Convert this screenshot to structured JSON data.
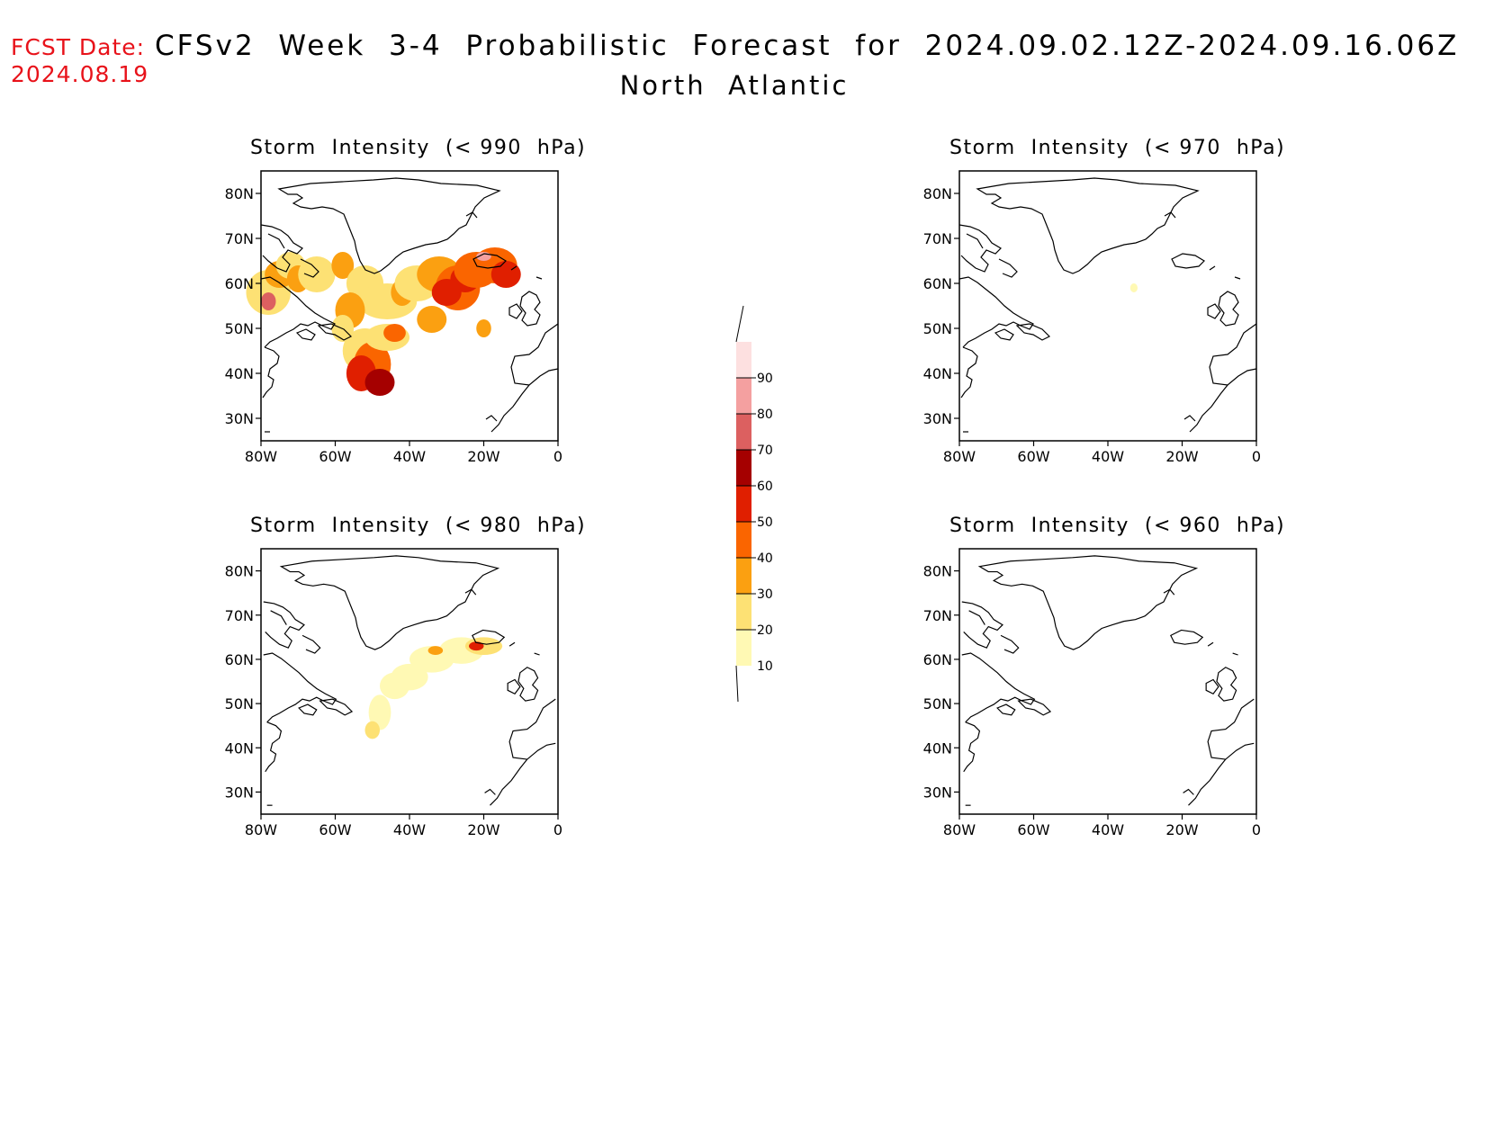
{
  "header": {
    "fcst_label": "FCST Date:",
    "fcst_date": "2024.08.19",
    "title": "CFSv2  Week  3-4  Probabilistic  Forecast  for  2024.09.02.12Z-2024.09.16.06Z",
    "region": "North  Atlantic"
  },
  "panels": [
    {
      "id": "p990",
      "title": "Storm  Intensity  (< 990  hPa)"
    },
    {
      "id": "p970",
      "title": "Storm  Intensity  (< 970  hPa)"
    },
    {
      "id": "p980",
      "title": "Storm  Intensity  (< 980  hPa)"
    },
    {
      "id": "p960",
      "title": "Storm  Intensity  (< 960  hPa)"
    }
  ],
  "axes": {
    "lat_ticks": [
      "80N",
      "70N",
      "60N",
      "50N",
      "40N",
      "30N"
    ],
    "lat_values": [
      80,
      70,
      60,
      50,
      40,
      30
    ],
    "lon_ticks": [
      "80W",
      "60W",
      "40W",
      "20W",
      "0"
    ],
    "lon_values": [
      -80,
      -60,
      -40,
      -20,
      0
    ],
    "lat_range": [
      25,
      85
    ],
    "lon_range": [
      -80,
      0
    ]
  },
  "colorbar": {
    "labels": [
      "10",
      "20",
      "30",
      "40",
      "50",
      "60",
      "70",
      "80",
      "90"
    ],
    "colors": [
      "#fff9b4",
      "#fde174",
      "#fba011",
      "#fa6500",
      "#e01f00",
      "#a50000",
      "#dc6060",
      "#f4a0a0",
      "#fde0e0"
    ]
  }
}
